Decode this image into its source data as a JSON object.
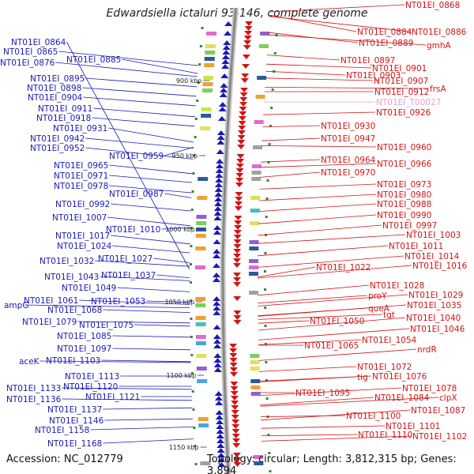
{
  "title": "Edwardsiella ictaluri 93-146, complete genome",
  "footer": {
    "accession": "Accession: NC_012779",
    "summary": "Topology: circular; Length: 3,812,315 bp; Genes: 3,894"
  },
  "scale_labels": [
    "900 kbp",
    "950 kbp",
    "1000 kbp",
    "1050 kbp",
    "1100 kbp",
    "1150 kbp"
  ],
  "left_labels": [
    "NT01EI_0864",
    "NT01EI_0865",
    "NT01EI_0876",
    "NT01EI_0885",
    "NT01EI_0895",
    "NT01EI_0898",
    "NT01EI_0904",
    "NT01EI_0911",
    "NT01EI_0918",
    "NT01EI_0931",
    "NT01EI_0942",
    "NT01EI_0952",
    "NT01EI_0959",
    "NT01EI_0965",
    "NT01EI_0971",
    "NT01EI_0978",
    "NT01EI_0987",
    "NT01EI_0992",
    "NT01EI_1007",
    "NT01EI_1010",
    "NT01EI_1017",
    "NT01EI_1024",
    "NT01EI_1032",
    "NT01EI_1027",
    "NT01EI_1043",
    "NT01EI_1037",
    "NT01EI_1049",
    "ampG",
    "NT01EI_1061",
    "NT01EI_1053",
    "NT01EI_1068",
    "NT01EI_1079",
    "NT01EI_1075",
    "NT01EI_1085",
    "NT01EI_1097",
    "aceK",
    "NT01EI_1103",
    "NT01EI_1113",
    "NT01EI_1120",
    "NT01EI_1133",
    "NT01EI_1121",
    "NT01EI_1136",
    "NT01EI_1137",
    "NT01EI_1146",
    "NT01EI_1158",
    "NT01EI_1168"
  ],
  "right_labels": [
    "NT01EI_0868",
    "NT01EI_0884",
    "NT01EI_0886",
    "NT01EI_0889",
    "gmhA",
    "NT01EI_0897",
    "NT01EI_0901",
    "NT01EI_0903",
    "NT01EI_0907",
    "NT01EI_0912",
    "frsA",
    "NT01EI_T00027",
    "NT01EI_0926",
    "NT01EI_0930",
    "NT01EI_0947",
    "NT01EI_0960",
    "NT01EI_0964",
    "NT01EI_0966",
    "NT01EI_0970",
    "NT01EI_0973",
    "NT01EI_0980",
    "NT01EI_0988",
    "NT01EI_0990",
    "NT01EI_0997",
    "NT01EI_1003",
    "NT01EI_1011",
    "NT01EI_1014",
    "NT01EI_1022",
    "NT01EI_1016",
    "NT01EI_1028",
    "proY",
    "NT01EI_1029",
    "queA",
    "NT01EI_1035",
    "tgt",
    "NT01EI_1040",
    "NT01EI_1050",
    "NT01EI_1046",
    "NT01EI_1054",
    "NT01EI_1065",
    "nrdR",
    "NT01EI_1072",
    "tig",
    "NT01EI_1076",
    "NT01EI_1078",
    "NT01EI_1095",
    "NT01EI_1084",
    "clpX",
    "NT01EI_1087",
    "NT01EI_1100",
    "NT01EI_1101",
    "NT01EI_1110",
    "NT01EI_1102"
  ],
  "colors": {
    "forward": "#d21414",
    "reverse": "#1a1ab4",
    "trna": "#e89cd8",
    "backbone": "#888888",
    "gc_marker": "#2e8b2e"
  }
}
